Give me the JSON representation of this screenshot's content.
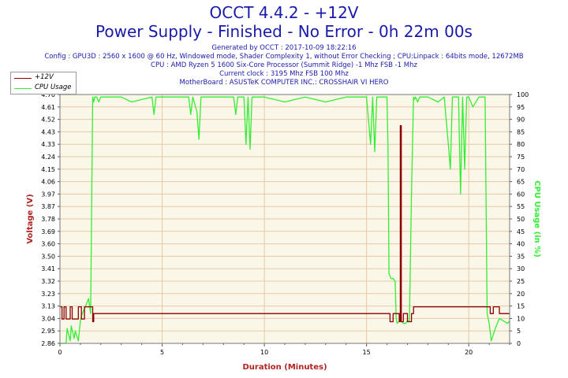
{
  "header": {
    "title": "OCCT 4.4.2 - +12V",
    "subtitle": "Power Supply - Finished - No Error - 0h 22m 00s",
    "generated": "Generated by OCCT : 2017-10-09 18:22:16",
    "config": "Config : GPU3D : 2560 x 1600 @ 60 Hz, Windowed mode, Shader Complexity 1, without Error Checking ; CPU:Linpack : 64bits mode, 12672MB",
    "cpu": "CPU : AMD Ryzen 5 1600 Six-Core Processor (Summit Ridge) -1 Mhz FSB -1 Mhz",
    "clock": "Current clock : 3195 Mhz FSB 100 Mhz",
    "motherboard": "MotherBoard : ASUSTeK COMPUTER INC.: CROSSHAIR VI HERO"
  },
  "colors": {
    "title": "#1a1aaa",
    "voltage": "#8b0000",
    "cpu": "#33ee33",
    "axis_label": "#b22222",
    "right_axis_label": "#33ee33",
    "plot_bg": "#faf6e8",
    "grid": "#e6c9a8"
  },
  "chart_data": {
    "type": "line",
    "title": "OCCT 4.4.2 - +12V",
    "xlabel": "Duration (Minutes)",
    "ylabel": "Voltage (V)",
    "ylabel_right": "CPU Usage (in %)",
    "xlim": [
      0,
      22
    ],
    "ylim": [
      2.86,
      4.7
    ],
    "ylim_right": [
      0,
      100
    ],
    "x_ticks": [
      0,
      5,
      10,
      15,
      20
    ],
    "y_ticks": [
      "2.86",
      "2.95",
      "3.04",
      "3.13",
      "3.23",
      "3.32",
      "3.41",
      "3.50",
      "3.60",
      "3.69",
      "3.78",
      "3.87",
      "3.97",
      "4.06",
      "4.15",
      "4.24",
      "4.33",
      "4.43",
      "4.52",
      "4.61",
      "4.70"
    ],
    "y_ticks_right": [
      "0",
      "5",
      "10",
      "15",
      "20",
      "25",
      "30",
      "35",
      "40",
      "45",
      "50",
      "55",
      "60",
      "65",
      "70",
      "75",
      "80",
      "85",
      "90",
      "95",
      "100"
    ],
    "grid": true,
    "legend_position": "top-left",
    "series": [
      {
        "name": "+12V",
        "axis": "left",
        "x": [
          0.0,
          0.1,
          0.1,
          0.2,
          0.2,
          0.3,
          0.3,
          0.5,
          0.5,
          0.6,
          0.6,
          0.9,
          0.9,
          1.05,
          1.05,
          1.2,
          1.2,
          1.6,
          1.6,
          1.65,
          1.65,
          16.15,
          16.15,
          16.3,
          16.3,
          16.6,
          16.6,
          16.65,
          16.65,
          16.7,
          16.7,
          16.8,
          16.8,
          17.0,
          17.0,
          17.2,
          17.2,
          17.3,
          17.3,
          21.05,
          21.05,
          21.2,
          21.2,
          21.5,
          21.5,
          22.0
        ],
        "values": [
          3.13,
          3.13,
          3.04,
          3.04,
          3.13,
          3.13,
          3.04,
          3.04,
          3.13,
          3.13,
          3.04,
          3.04,
          3.13,
          3.13,
          3.04,
          3.04,
          3.13,
          3.13,
          3.02,
          3.02,
          3.08,
          3.08,
          3.02,
          3.02,
          3.08,
          3.08,
          3.02,
          3.02,
          4.47,
          4.47,
          3.02,
          3.02,
          3.08,
          3.08,
          3.02,
          3.02,
          3.08,
          3.08,
          3.13,
          3.13,
          3.08,
          3.08,
          3.13,
          3.13,
          3.08,
          3.08
        ]
      },
      {
        "name": "CPU Usage",
        "axis": "right",
        "x": [
          0.0,
          0.3,
          0.35,
          0.5,
          0.55,
          0.7,
          0.75,
          0.9,
          1.0,
          1.05,
          1.4,
          1.5,
          1.6,
          1.65,
          1.7,
          1.8,
          1.9,
          2.0,
          3.0,
          3.5,
          4.5,
          4.6,
          4.7,
          5.5,
          6.3,
          6.4,
          6.5,
          6.7,
          6.8,
          6.9,
          7.5,
          8.5,
          8.6,
          8.7,
          9.0,
          9.1,
          9.2,
          9.3,
          9.4,
          10.0,
          11.0,
          12.0,
          13.0,
          14.0,
          15.0,
          15.2,
          15.3,
          15.4,
          15.5,
          16.0,
          16.05,
          16.1,
          16.2,
          16.3,
          16.4,
          16.45,
          16.5,
          16.6,
          16.7,
          16.8,
          16.9,
          17.0,
          17.1,
          17.2,
          17.3,
          17.35,
          17.4,
          17.5,
          17.6,
          18.0,
          18.5,
          18.8,
          19.0,
          19.1,
          19.2,
          19.5,
          19.6,
          19.7,
          19.8,
          19.9,
          20.0,
          20.2,
          20.5,
          20.8,
          20.9,
          21.0,
          21.1,
          21.3,
          21.5,
          21.7,
          21.9,
          22.0
        ],
        "values": [
          0,
          0,
          6,
          1,
          7,
          2,
          5,
          1,
          9,
          11,
          18,
          12,
          99,
          97,
          99,
          99,
          97,
          99,
          99,
          97,
          99,
          92,
          99,
          99,
          99,
          92,
          99,
          93,
          82,
          99,
          99,
          99,
          92,
          99,
          99,
          80,
          99,
          78,
          99,
          99,
          97,
          99,
          97,
          99,
          99,
          80,
          99,
          77,
          99,
          99,
          80,
          28,
          26,
          26,
          25,
          10,
          8,
          9,
          9,
          8,
          8,
          9,
          9,
          60,
          99,
          98,
          99,
          97,
          99,
          99,
          97,
          99,
          80,
          70,
          99,
          99,
          60,
          99,
          70,
          99,
          99,
          95,
          99,
          99,
          12,
          8,
          1,
          6,
          10,
          9,
          8,
          9
        ]
      }
    ]
  }
}
